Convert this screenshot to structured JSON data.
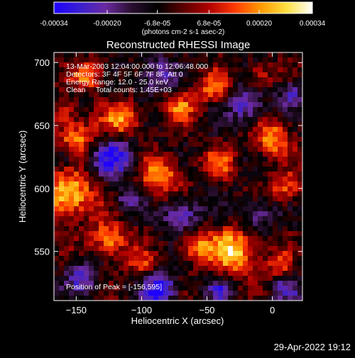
{
  "chart_data": {
    "type": "heatmap",
    "title": "Reconstructed RHESSI Image",
    "xlabel": "Heliocentric X (arcsec)",
    "ylabel": "Heliocentric Y (arcsec)",
    "xlim": [
      -167,
      23
    ],
    "ylim": [
      511,
      708
    ],
    "x_ticks": [
      -150,
      -100,
      -50,
      0
    ],
    "y_ticks": [
      550,
      600,
      650,
      700
    ],
    "colorbar": {
      "range": [
        -0.00034,
        0.00034
      ],
      "tick_values": [
        -0.00034,
        -0.0002,
        -6.8e-05,
        6.8e-05,
        0.0002,
        0.00034
      ],
      "tick_labels": [
        "-0.00034",
        "-0.00020",
        "-6.8e-05",
        "6.8e-05",
        "0.00020",
        "0.00034"
      ],
      "unit_label": "(photons cm-2 s-1 asec-2)",
      "colors": [
        "#1e00ff",
        "#3a1fd0",
        "#6a2aa0",
        "#2a0f30",
        "#000000",
        "#5a0000",
        "#b00000",
        "#ff3a00",
        "#ff9a00",
        "#ffe040",
        "#ffffff"
      ]
    },
    "peak": [
      -156,
      595
    ],
    "annotations": {
      "line1": "13-Mar-2003 12:04:00.000 to 12:06:48.000",
      "line2": "Detectors: 3F 4F 5F 6F 7F 8F, Att 0",
      "line3": "Energy Range: 12.0 - 25.0 keV",
      "line4": "Clean     Total counts: 1.45E+03",
      "peak_text": "Position of Peak = [-156,595]"
    },
    "hot_regions": [
      {
        "x": -156,
        "y": 595,
        "r": 18,
        "v": 1.0
      },
      {
        "x": -150,
        "y": 640,
        "r": 14,
        "v": 0.7
      },
      {
        "x": -140,
        "y": 690,
        "r": 12,
        "v": 0.7
      },
      {
        "x": -125,
        "y": 560,
        "r": 14,
        "v": 0.8
      },
      {
        "x": -115,
        "y": 655,
        "r": 14,
        "v": 0.8
      },
      {
        "x": -85,
        "y": 610,
        "r": 16,
        "v": 0.75
      },
      {
        "x": -70,
        "y": 665,
        "r": 13,
        "v": 0.6
      },
      {
        "x": -45,
        "y": 680,
        "r": 12,
        "v": 0.6
      },
      {
        "x": -60,
        "y": 555,
        "r": 12,
        "v": 0.65
      },
      {
        "x": -30,
        "y": 550,
        "r": 18,
        "v": 0.95
      },
      {
        "x": -40,
        "y": 620,
        "r": 12,
        "v": 0.6
      },
      {
        "x": 0,
        "y": 640,
        "r": 14,
        "v": 0.75
      },
      {
        "x": 10,
        "y": 600,
        "r": 12,
        "v": 0.6
      },
      {
        "x": 5,
        "y": 540,
        "r": 10,
        "v": 0.55
      },
      {
        "x": -100,
        "y": 540,
        "r": 10,
        "v": 0.5
      },
      {
        "x": -160,
        "y": 660,
        "r": 10,
        "v": 0.5
      },
      {
        "x": -10,
        "y": 690,
        "r": 10,
        "v": 0.5
      }
    ],
    "cold_regions": [
      {
        "x": -120,
        "y": 625,
        "r": 16,
        "v": -0.7
      },
      {
        "x": -90,
        "y": 690,
        "r": 14,
        "v": -0.55
      },
      {
        "x": -70,
        "y": 580,
        "r": 14,
        "v": -0.6
      },
      {
        "x": -20,
        "y": 665,
        "r": 14,
        "v": -0.6
      },
      {
        "x": -145,
        "y": 530,
        "r": 12,
        "v": -0.55
      },
      {
        "x": -85,
        "y": 520,
        "r": 12,
        "v": -0.9
      },
      {
        "x": -10,
        "y": 580,
        "r": 12,
        "v": -0.5
      },
      {
        "x": 15,
        "y": 675,
        "r": 10,
        "v": -0.55
      },
      {
        "x": -160,
        "y": 625,
        "r": 10,
        "v": -0.45
      },
      {
        "x": -110,
        "y": 590,
        "r": 10,
        "v": -0.45
      },
      {
        "x": -40,
        "y": 520,
        "r": 10,
        "v": -0.5
      },
      {
        "x": 10,
        "y": 520,
        "r": 10,
        "v": -0.45
      }
    ]
  },
  "footer": {
    "timestamp": "29-Apr-2022 19:12"
  }
}
